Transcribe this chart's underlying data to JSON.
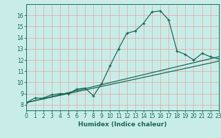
{
  "title": "",
  "xlabel": "Humidex (Indice chaleur)",
  "background_color": "#c8ede8",
  "grid_color": "#e8a0a0",
  "line_color": "#1a6655",
  "xmin": 0,
  "xmax": 23,
  "ymin": 7.5,
  "ymax": 17.0,
  "yticks": [
    8,
    9,
    10,
    11,
    12,
    13,
    14,
    15,
    16
  ],
  "xticks": [
    0,
    1,
    2,
    3,
    4,
    5,
    6,
    7,
    8,
    9,
    10,
    11,
    12,
    13,
    14,
    15,
    16,
    17,
    18,
    19,
    20,
    21,
    22,
    23
  ],
  "curve1_x": [
    0,
    1,
    2,
    3,
    4,
    5,
    6,
    7,
    8,
    9,
    10,
    11,
    12,
    13,
    14,
    15,
    16,
    17,
    18,
    19,
    20,
    21,
    22,
    23
  ],
  "curve1_y": [
    8.2,
    8.6,
    8.6,
    8.9,
    9.0,
    9.0,
    9.4,
    9.5,
    8.8,
    9.9,
    11.5,
    13.0,
    14.4,
    14.6,
    15.3,
    16.3,
    16.4,
    15.6,
    12.8,
    12.5,
    12.0,
    12.6,
    12.3,
    12.1
  ],
  "curve2_x": [
    0,
    23
  ],
  "curve2_y": [
    8.2,
    12.3
  ],
  "curve3_x": [
    0,
    23
  ],
  "curve3_y": [
    8.2,
    11.9
  ]
}
